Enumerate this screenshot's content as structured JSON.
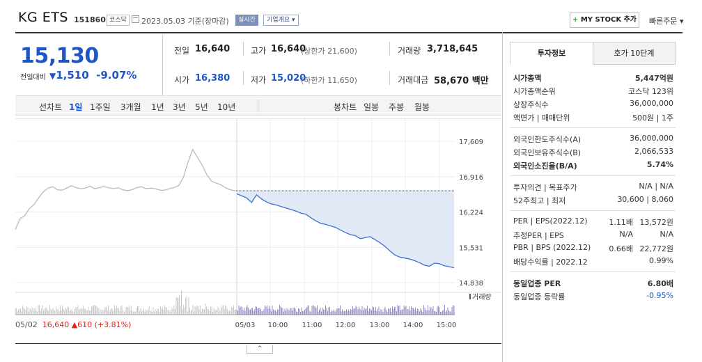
{
  "header": {
    "name": "KG ETS",
    "code": "151860",
    "market": "코스닥",
    "date": "2023.05.03",
    "basis": "기준(장마감)",
    "live": "실시간",
    "corp_info": "기업개요",
    "mystock": "MY STOCK 추가",
    "quick_order": "빠른주문"
  },
  "price": {
    "current": "15,130",
    "change_label": "전일대비",
    "change": "1,510",
    "change_pct": "-9.07%"
  },
  "stats": {
    "prev_label": "전일",
    "prev": "16,640",
    "high_label": "고가",
    "high": "16,640",
    "upper_limit": "(상한가 21,600)",
    "volume_label": "거래량",
    "volume": "3,718,645",
    "open_label": "시가",
    "open": "16,380",
    "low_label": "저가",
    "low": "15,020",
    "lower_limit": "(하한가 11,650)",
    "amount_label": "거래대금",
    "amount": "58,670",
    "amount_unit": "백만"
  },
  "period_bar": {
    "line_label": "선차트",
    "line_items": [
      "1일",
      "1주일",
      "3개월",
      "1년",
      "3년",
      "5년",
      "10년"
    ],
    "candle_label": "봉차트",
    "candle_items": [
      "일봉",
      "주봉",
      "월봉"
    ]
  },
  "chart_data": {
    "type": "line",
    "y_ticks": [
      "17,609",
      "16,916",
      "16,224",
      "15,531",
      "14,838"
    ],
    "ylim": [
      14838,
      17609
    ],
    "prev_close": 16640,
    "x_ticks": [
      "05/03",
      "10:00",
      "11:00",
      "12:00",
      "13:00",
      "14:00",
      "15:00"
    ],
    "volume_label": "거래량",
    "prev_day": {
      "date": "05/02",
      "close": "16,640",
      "change": "610",
      "change_pct": "(+3.81%)",
      "values": [
        15880,
        16090,
        16150,
        16290,
        16370,
        16500,
        16620,
        16690,
        16720,
        16660,
        16650,
        16690,
        16740,
        16700,
        16680,
        16690,
        16730,
        16680,
        16700,
        16720,
        16700,
        16680,
        16700,
        16660,
        16640,
        16660,
        16700,
        16720,
        16680,
        16690,
        16680,
        16650,
        16650,
        16680,
        16700,
        16740,
        16900,
        17200,
        17450,
        17300,
        17150,
        16960,
        16830,
        16790,
        16760,
        16700,
        16660,
        16640
      ]
    },
    "today": {
      "values": [
        16580,
        16540,
        16500,
        16410,
        16560,
        16480,
        16420,
        16380,
        16360,
        16330,
        16300,
        16270,
        16240,
        16200,
        16180,
        16110,
        16050,
        16000,
        15980,
        15950,
        15920,
        15870,
        15820,
        15780,
        15760,
        15700,
        15720,
        15740,
        15680,
        15620,
        15550,
        15460,
        15380,
        15340,
        15320,
        15300,
        15270,
        15230,
        15180,
        15160,
        15220,
        15210,
        15170,
        15150,
        15130
      ]
    }
  },
  "side_panel": {
    "tab_active": "투자정보",
    "tab_inactive": "호가 10단계",
    "g1": [
      {
        "k": "시가총액",
        "v": "5,447억원",
        "bold": true
      },
      {
        "k": "시가총액순위",
        "v": "코스닥 123위"
      },
      {
        "k": "상장주식수",
        "v": "36,000,000"
      },
      {
        "k": "액면가 | 매매단위",
        "v": "500원 | 1주"
      }
    ],
    "g2": [
      {
        "k": "외국인한도주식수(A)",
        "v": "36,000,000"
      },
      {
        "k": "외국인보유주식수(B)",
        "v": "2,066,533"
      },
      {
        "k": "외국인소진율(B/A)",
        "v": "5.74%",
        "bold": true
      }
    ],
    "g3": [
      {
        "k": "투자의견 | 목표주가",
        "v": "N/A | N/A"
      },
      {
        "k": "52주최고 | 최저",
        "v": "30,600 | 8,060"
      }
    ],
    "g4": [
      {
        "k": "PER | EPS(2022.12)",
        "v1": "1.11배",
        "v": "13,572원"
      },
      {
        "k": "추정PER | EPS",
        "v1": "N/A",
        "v": "N/A"
      },
      {
        "k": "PBR | BPS (2022.12)",
        "v1": "0.66배",
        "v": "22,772원"
      },
      {
        "k": "배당수익률 | 2022.12",
        "v": "0.99%"
      }
    ],
    "g5": [
      {
        "k": "동일업종 PER",
        "v": "6.80배",
        "bold": true
      },
      {
        "k": "동일업종 등락률",
        "v": "-0.95%"
      }
    ]
  },
  "colors": {
    "up": "#e0221b",
    "down": "#1e56c8",
    "line_prev": "#b5b5b5",
    "line_today": "#3b6fcf",
    "fill": "#e1e9f7"
  }
}
